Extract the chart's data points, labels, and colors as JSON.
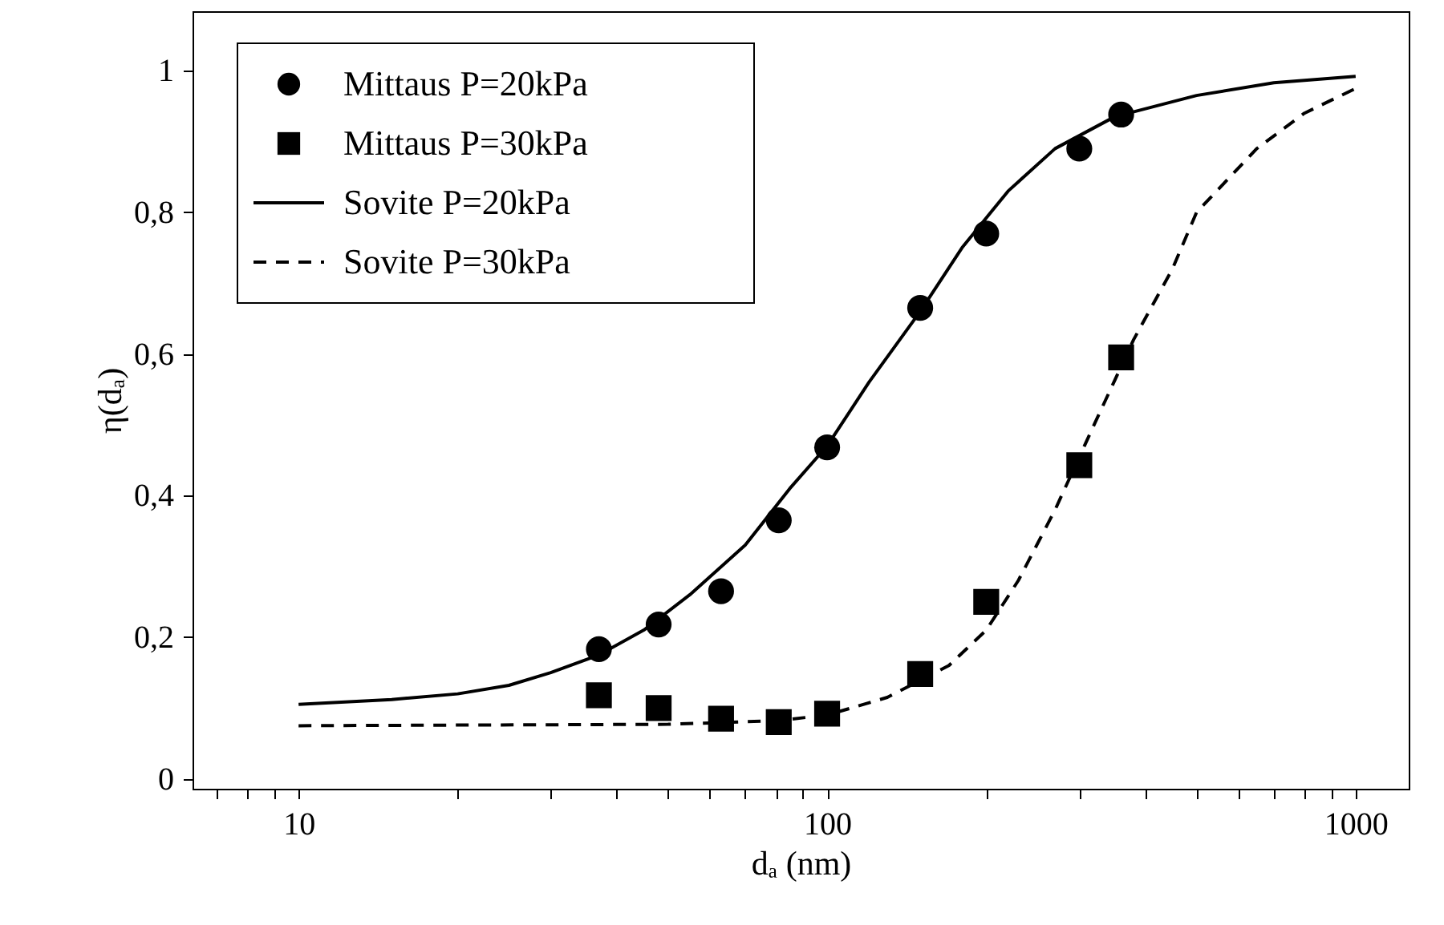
{
  "chart_data": {
    "type": "line",
    "xlabel": "dₐ (nm)",
    "ylabel": "η(dₐ)",
    "log": "x",
    "grid": false,
    "legend": "top left",
    "xlim": [
      6.3,
      1260
    ],
    "ylim": [
      -0.014,
      1.084
    ],
    "xticks": [
      {
        "value": 7,
        "label": null
      },
      {
        "value": 8,
        "label": null
      },
      {
        "value": 9,
        "label": null
      },
      10,
      {
        "value": 20,
        "label": null
      },
      {
        "value": 30,
        "label": null
      },
      {
        "value": 40,
        "label": null
      },
      {
        "value": 50,
        "label": null
      },
      {
        "value": 60,
        "label": null
      },
      {
        "value": 70,
        "label": null
      },
      {
        "value": 80,
        "label": null
      },
      {
        "value": 90,
        "label": null
      },
      100,
      {
        "value": 200,
        "label": null
      },
      {
        "value": 300,
        "label": null
      },
      {
        "value": 400,
        "label": null
      },
      {
        "value": 500,
        "label": null
      },
      {
        "value": 600,
        "label": null
      },
      {
        "value": 700,
        "label": null
      },
      {
        "value": 800,
        "label": null
      },
      {
        "value": 900,
        "label": null
      },
      1000
    ],
    "yticks": [
      0,
      {
        "value": 0.2,
        "label": "0,2"
      },
      {
        "value": 0.4,
        "label": "0,4"
      },
      {
        "value": 0.6,
        "label": "0,6"
      },
      {
        "value": 0.8,
        "label": "0,8"
      },
      1
    ],
    "series": [
      {
        "name": "Mittaus P=20kPa",
        "type": "scatter",
        "marker": "circle",
        "color": "#000000",
        "x": [
          37,
          48,
          63,
          81,
          100,
          150,
          200,
          300,
          360
        ],
        "values": [
          0.183,
          0.218,
          0.265,
          0.365,
          0.468,
          0.665,
          0.77,
          0.89,
          0.938
        ]
      },
      {
        "name": "Mittaus P=30kPa",
        "type": "scatter",
        "marker": "square",
        "color": "#000000",
        "x": [
          37,
          48,
          63,
          81,
          100,
          150,
          200,
          300,
          360
        ],
        "values": [
          0.118,
          0.1,
          0.085,
          0.08,
          0.092,
          0.148,
          0.25,
          0.443,
          0.595
        ]
      },
      {
        "name": "Sovite P=20kPa",
        "type": "line",
        "line_style": "solid",
        "color": "#000000",
        "x": [
          10,
          15,
          20,
          25,
          30,
          37,
          45,
          55,
          70,
          85,
          100,
          120,
          150,
          180,
          220,
          270,
          350,
          500,
          700,
          1000
        ],
        "values": [
          0.105,
          0.112,
          0.12,
          0.132,
          0.15,
          0.175,
          0.21,
          0.26,
          0.33,
          0.41,
          0.47,
          0.56,
          0.66,
          0.75,
          0.83,
          0.89,
          0.935,
          0.965,
          0.983,
          0.992
        ]
      },
      {
        "name": "Sovite P=30kPa",
        "type": "line",
        "line_style": "dashed",
        "color": "#000000",
        "x": [
          10,
          50,
          80,
          100,
          130,
          170,
          200,
          230,
          270,
          320,
          380,
          450,
          500,
          650,
          800,
          1000
        ],
        "values": [
          0.075,
          0.077,
          0.082,
          0.09,
          0.115,
          0.16,
          0.21,
          0.28,
          0.38,
          0.5,
          0.62,
          0.72,
          0.8,
          0.89,
          0.94,
          0.975
        ]
      }
    ]
  }
}
